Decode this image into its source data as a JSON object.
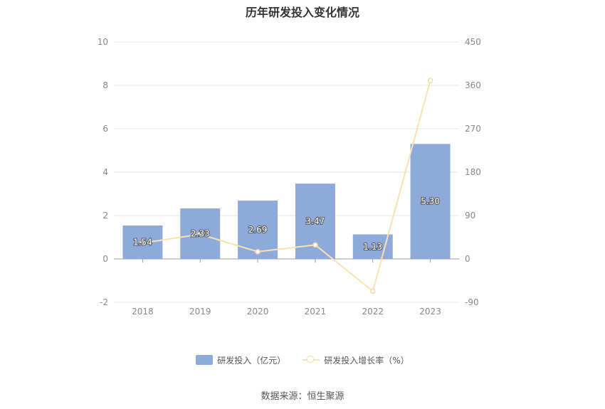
{
  "chart_data": {
    "type": "bar",
    "title": "历年研发投入变化情况",
    "categories": [
      "2018",
      "2019",
      "2020",
      "2021",
      "2022",
      "2023"
    ],
    "series": [
      {
        "name": "研发投入（亿元）",
        "type": "bar",
        "axis": "left",
        "values": [
          1.54,
          2.33,
          2.69,
          3.47,
          1.13,
          5.3
        ],
        "labels": [
          "1.54",
          "2.33",
          "2.69",
          "3.47",
          "1.13",
          "5.30"
        ]
      },
      {
        "name": "研发投入增长率（%）",
        "type": "line",
        "axis": "right",
        "values": [
          33,
          51,
          15,
          29,
          -67,
          370
        ]
      }
    ],
    "y_left": {
      "min": -2,
      "max": 10,
      "ticks": [
        "-2",
        "0",
        "2",
        "4",
        "6",
        "8",
        "10"
      ]
    },
    "y_right": {
      "min": -90,
      "max": 450,
      "ticks": [
        "-90",
        "0",
        "90",
        "180",
        "270",
        "360",
        "450"
      ]
    },
    "grid": true,
    "legend_position": "bottom",
    "colors": {
      "bar": "#8eaadb",
      "line": "#fbe0b0",
      "grid": "#e6e6e6",
      "axis": "#999999",
      "tick_text": "#888888"
    }
  },
  "footer": {
    "source": "数据来源：恒生聚源"
  }
}
